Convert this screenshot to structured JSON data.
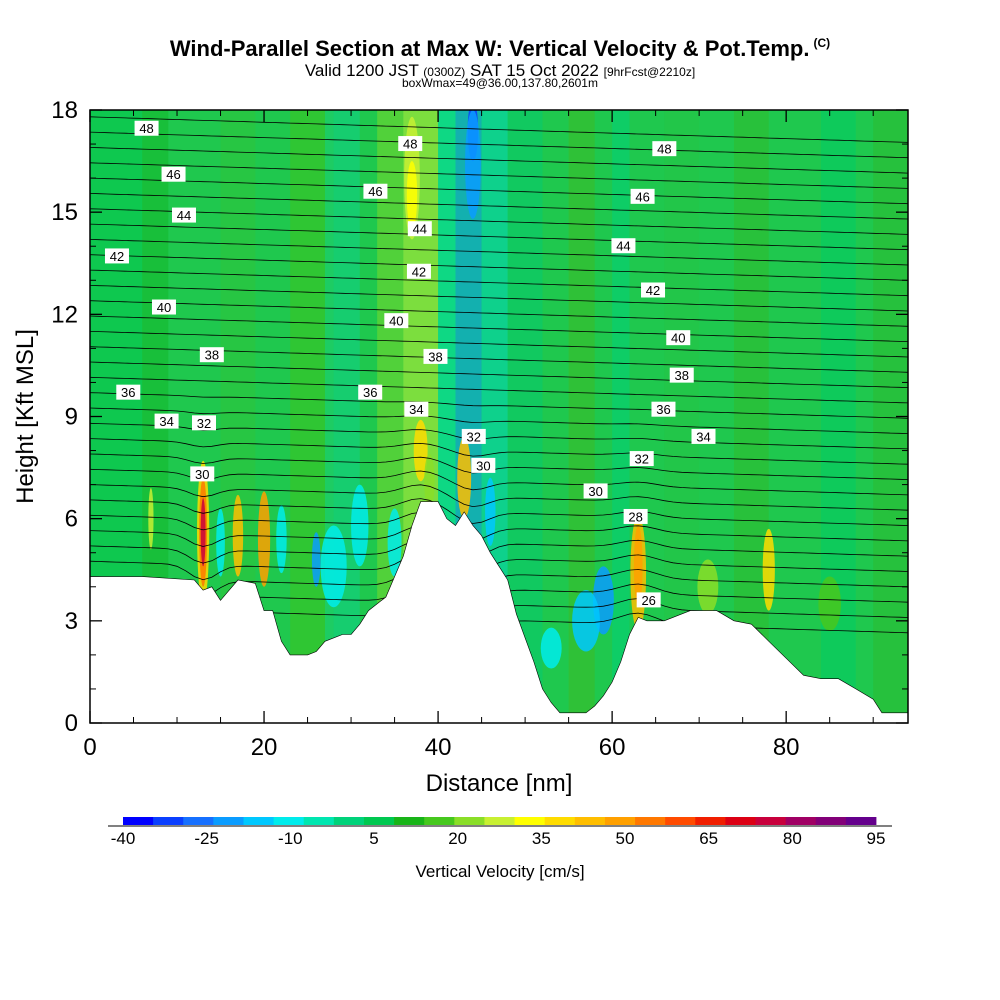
{
  "title": {
    "main": "Wind-Parallel Section at Max W: Vertical Velocity & Pot.Temp.",
    "copyright": "(C)",
    "valid_prefix": "Valid 1200 JST",
    "valid_utc": "(0300Z)",
    "valid_date": "SAT 15 Oct 2022",
    "forecast": "[9hrFcst@2210z]",
    "box_info": "boxWmax=49@36.00,137.80,2601m"
  },
  "chart_data": {
    "type": "heatmap",
    "xlabel": "Distance [nm]",
    "ylabel": "Height [Kft MSL]",
    "xlim": [
      0,
      94
    ],
    "ylim": [
      0,
      18
    ],
    "x_ticks": [
      "0",
      "20",
      "40",
      "60",
      "80"
    ],
    "y_ticks": [
      "0",
      "3",
      "6",
      "9",
      "12",
      "15",
      "18"
    ],
    "colorbar": {
      "label": "Vertical Velocity [cm/s]",
      "tick_labels": [
        "-40",
        "-25",
        "-10",
        "5",
        "20",
        "35",
        "50",
        "65",
        "80",
        "95"
      ],
      "colors": [
        "#0000ff",
        "#0a3fff",
        "#1670ff",
        "#0a9cff",
        "#00c8ff",
        "#00ecec",
        "#00e6b0",
        "#00d27a",
        "#00c850",
        "#18b418",
        "#46c81e",
        "#8ade28",
        "#c8f032",
        "#ffff00",
        "#ffdc00",
        "#ffbe00",
        "#ffa000",
        "#ff7800",
        "#ff4b00",
        "#f01e00",
        "#dc0014",
        "#c8003c",
        "#a00064",
        "#820078",
        "#64008c"
      ]
    },
    "terrain": [
      [
        0,
        4.3
      ],
      [
        6,
        4.3
      ],
      [
        12,
        4.2
      ],
      [
        13,
        3.9
      ],
      [
        14,
        4.0
      ],
      [
        15,
        3.6
      ],
      [
        16,
        3.9
      ],
      [
        17,
        4.2
      ],
      [
        19,
        4.1
      ],
      [
        20,
        3.3
      ],
      [
        21,
        3.3
      ],
      [
        22,
        2.4
      ],
      [
        23,
        2.0
      ],
      [
        25,
        2.0
      ],
      [
        26,
        2.1
      ],
      [
        27,
        2.4
      ],
      [
        29,
        2.6
      ],
      [
        30,
        2.6
      ],
      [
        31,
        2.9
      ],
      [
        32,
        3.3
      ],
      [
        34,
        3.7
      ],
      [
        35,
        4.3
      ],
      [
        36,
        4.9
      ],
      [
        37,
        5.8
      ],
      [
        38,
        6.5
      ],
      [
        40,
        6.5
      ],
      [
        41,
        6.0
      ],
      [
        42,
        5.8
      ],
      [
        43,
        6.2
      ],
      [
        44,
        5.8
      ],
      [
        45,
        5.5
      ],
      [
        46,
        5.0
      ],
      [
        47,
        4.6
      ],
      [
        48,
        4.2
      ],
      [
        49,
        3.2
      ],
      [
        50,
        2.5
      ],
      [
        51,
        1.8
      ],
      [
        52,
        1.0
      ],
      [
        53,
        0.6
      ],
      [
        54,
        0.3
      ],
      [
        57,
        0.3
      ],
      [
        58,
        0.5
      ],
      [
        59,
        0.8
      ],
      [
        60,
        1.2
      ],
      [
        61,
        1.8
      ],
      [
        62,
        2.6
      ],
      [
        63,
        3.1
      ],
      [
        64,
        3.0
      ],
      [
        66,
        3.0
      ],
      [
        69,
        3.3
      ],
      [
        72,
        3.3
      ],
      [
        74,
        3.0
      ],
      [
        76,
        2.9
      ],
      [
        78,
        2.4
      ],
      [
        80,
        1.9
      ],
      [
        82,
        1.4
      ],
      [
        84,
        1.3
      ],
      [
        86,
        1.3
      ],
      [
        88,
        1.0
      ],
      [
        90,
        0.7
      ],
      [
        91,
        0.3
      ],
      [
        94,
        0.3
      ]
    ],
    "theta_isotherm_labels": [
      {
        "text": "48",
        "x": 6.5,
        "y": 17.45
      },
      {
        "text": "48",
        "x": 36.8,
        "y": 17.0
      },
      {
        "text": "48",
        "x": 66.0,
        "y": 16.85
      },
      {
        "text": "46",
        "x": 9.6,
        "y": 16.1
      },
      {
        "text": "46",
        "x": 32.8,
        "y": 15.6
      },
      {
        "text": "46",
        "x": 63.5,
        "y": 15.45
      },
      {
        "text": "44",
        "x": 10.8,
        "y": 14.9
      },
      {
        "text": "44",
        "x": 37.9,
        "y": 14.5
      },
      {
        "text": "44",
        "x": 61.3,
        "y": 14.0
      },
      {
        "text": "42",
        "x": 3.1,
        "y": 13.7
      },
      {
        "text": "42",
        "x": 37.8,
        "y": 13.25
      },
      {
        "text": "42",
        "x": 64.7,
        "y": 12.7
      },
      {
        "text": "40",
        "x": 8.5,
        "y": 12.2
      },
      {
        "text": "40",
        "x": 35.2,
        "y": 11.8
      },
      {
        "text": "40",
        "x": 67.6,
        "y": 11.3
      },
      {
        "text": "38",
        "x": 14.0,
        "y": 10.8
      },
      {
        "text": "38",
        "x": 39.7,
        "y": 10.75
      },
      {
        "text": "38",
        "x": 68.0,
        "y": 10.2
      },
      {
        "text": "36",
        "x": 4.4,
        "y": 9.7
      },
      {
        "text": "36",
        "x": 32.2,
        "y": 9.7
      },
      {
        "text": "36",
        "x": 65.9,
        "y": 9.2
      },
      {
        "text": "34",
        "x": 8.8,
        "y": 8.85
      },
      {
        "text": "34",
        "x": 37.5,
        "y": 9.2
      },
      {
        "text": "34",
        "x": 70.5,
        "y": 8.4
      },
      {
        "text": "32",
        "x": 13.1,
        "y": 8.8
      },
      {
        "text": "32",
        "x": 44.1,
        "y": 8.4
      },
      {
        "text": "32",
        "x": 63.4,
        "y": 7.75
      },
      {
        "text": "30",
        "x": 12.9,
        "y": 7.3
      },
      {
        "text": "30",
        "x": 45.2,
        "y": 7.55
      },
      {
        "text": "30",
        "x": 58.1,
        "y": 6.8
      },
      {
        "text": "28",
        "x": 62.7,
        "y": 6.05
      },
      {
        "text": "26",
        "x": 64.2,
        "y": 3.6
      }
    ]
  }
}
